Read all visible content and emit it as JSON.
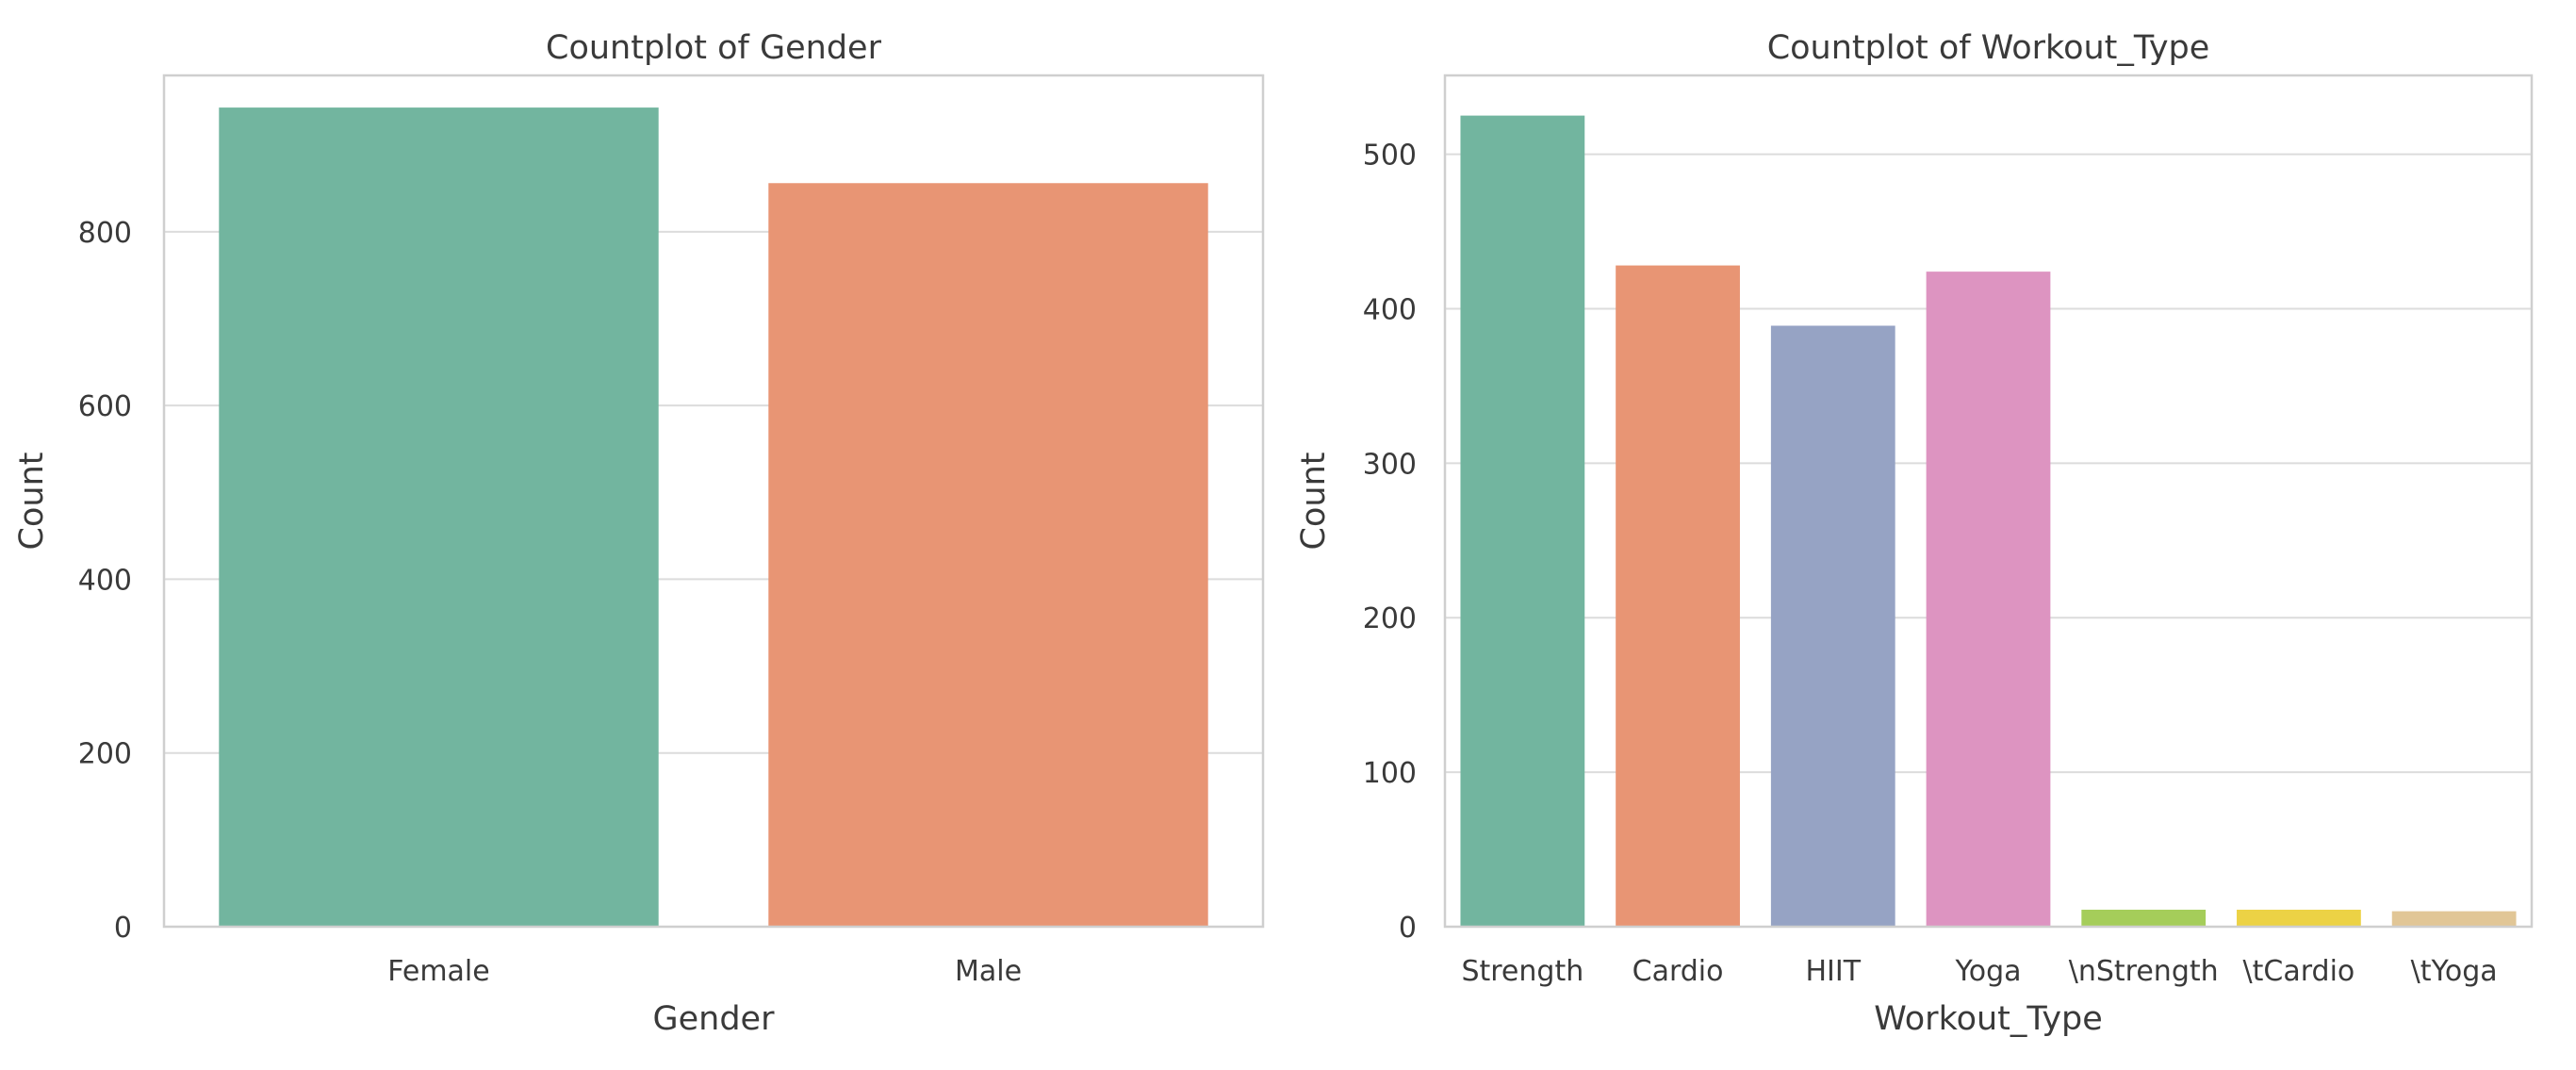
{
  "chart_data": [
    {
      "type": "bar",
      "title": "Countplot of Gender",
      "xlabel": "Gender",
      "ylabel": "Count",
      "categories": [
        "Female",
        "Male"
      ],
      "values": [
        943,
        856
      ],
      "colors": [
        "#72b59f",
        "#e89574"
      ],
      "ylim": [
        0,
        980
      ],
      "yticks": [
        0,
        200,
        400,
        600,
        800
      ],
      "ytick_labels": [
        "0",
        "200",
        "400",
        "600",
        "800"
      ],
      "grid": true
    },
    {
      "type": "bar",
      "title": "Countplot of Workout_Type",
      "xlabel": "Workout_Type",
      "ylabel": "Count",
      "categories": [
        "Strength",
        "Cardio",
        "HIIT",
        "Yoga",
        "\\nStrength",
        "\\tCardio",
        "\\tYoga"
      ],
      "values": [
        525,
        428,
        389,
        424,
        11,
        11,
        10
      ],
      "colors": [
        "#72b59f",
        "#e89574",
        "#96a3c4",
        "#dd94c1",
        "#a5cd5a",
        "#ecd245",
        "#e1c696"
      ],
      "ylim": [
        0,
        551
      ],
      "yticks": [
        0,
        100,
        200,
        300,
        400,
        500
      ],
      "ytick_labels": [
        "0",
        "100",
        "200",
        "300",
        "400",
        "500"
      ],
      "grid": true
    }
  ]
}
